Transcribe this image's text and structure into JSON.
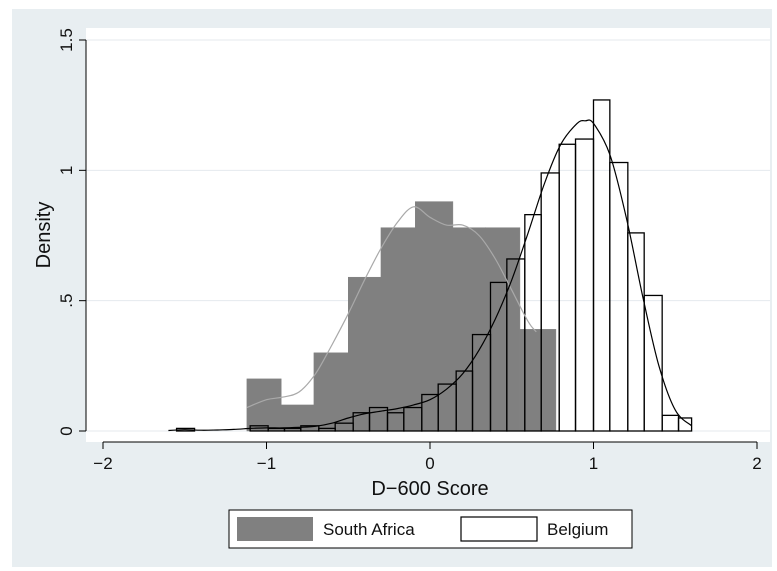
{
  "chart_data": {
    "type": "histogram",
    "xlabel": "D−600 Score",
    "ylabel": "Density",
    "xlim": [
      -2,
      2
    ],
    "ylim": [
      0,
      1.5
    ],
    "xticks": [
      {
        "value": -2,
        "label": "−2"
      },
      {
        "value": -1,
        "label": "−1"
      },
      {
        "value": 0,
        "label": "0"
      },
      {
        "value": 1,
        "label": "1"
      },
      {
        "value": 2,
        "label": "2"
      }
    ],
    "yticks": [
      {
        "value": 0,
        "label": "0"
      },
      {
        "value": 0.5,
        "label": ".5"
      },
      {
        "value": 1,
        "label": "1"
      },
      {
        "value": 1.5,
        "label": "1.5"
      }
    ],
    "grid": true,
    "legend": "bottom",
    "series": [
      {
        "name": "South Africa",
        "style": "filled",
        "fill": "#808080",
        "stroke": "#808080",
        "kde_color": "#a9a9a9",
        "bins": [
          {
            "x0": -1.12,
            "x1": -0.91,
            "y": 0.2
          },
          {
            "x0": -0.91,
            "x1": -0.71,
            "y": 0.1
          },
          {
            "x0": -0.71,
            "x1": -0.5,
            "y": 0.3
          },
          {
            "x0": -0.5,
            "x1": -0.3,
            "y": 0.59
          },
          {
            "x0": -0.3,
            "x1": -0.09,
            "y": 0.78
          },
          {
            "x0": -0.09,
            "x1": 0.14,
            "y": 0.88
          },
          {
            "x0": 0.14,
            "x1": 0.34,
            "y": 0.78
          },
          {
            "x0": 0.34,
            "x1": 0.55,
            "y": 0.78
          },
          {
            "x0": 0.55,
            "x1": 0.77,
            "y": 0.39
          }
        ],
        "kde": [
          [
            -1.12,
            0.09
          ],
          [
            -1.0,
            0.12
          ],
          [
            -0.9,
            0.13
          ],
          [
            -0.8,
            0.15
          ],
          [
            -0.7,
            0.22
          ],
          [
            -0.6,
            0.33
          ],
          [
            -0.5,
            0.45
          ],
          [
            -0.4,
            0.58
          ],
          [
            -0.3,
            0.7
          ],
          [
            -0.2,
            0.8
          ],
          [
            -0.1,
            0.86
          ],
          [
            0.0,
            0.82
          ],
          [
            0.1,
            0.79
          ],
          [
            0.2,
            0.79
          ],
          [
            0.3,
            0.75
          ],
          [
            0.4,
            0.66
          ],
          [
            0.5,
            0.54
          ],
          [
            0.6,
            0.42
          ],
          [
            0.65,
            0.38
          ]
        ]
      },
      {
        "name": "Belgium",
        "style": "outline",
        "fill": "#ffffff",
        "stroke": "#000000",
        "kde_color": "#000000",
        "bins": [
          {
            "x0": -1.55,
            "x1": -1.44,
            "y": 0.01
          },
          {
            "x0": -1.1,
            "x1": -0.99,
            "y": 0.02
          },
          {
            "x0": -0.99,
            "x1": -0.89,
            "y": 0.01
          },
          {
            "x0": -0.89,
            "x1": -0.79,
            "y": 0.01
          },
          {
            "x0": -0.79,
            "x1": -0.68,
            "y": 0.02
          },
          {
            "x0": -0.68,
            "x1": -0.58,
            "y": 0.01
          },
          {
            "x0": -0.58,
            "x1": -0.47,
            "y": 0.03
          },
          {
            "x0": -0.47,
            "x1": -0.37,
            "y": 0.07
          },
          {
            "x0": -0.37,
            "x1": -0.26,
            "y": 0.09
          },
          {
            "x0": -0.26,
            "x1": -0.16,
            "y": 0.07
          },
          {
            "x0": -0.16,
            "x1": -0.05,
            "y": 0.09
          },
          {
            "x0": -0.05,
            "x1": 0.05,
            "y": 0.14
          },
          {
            "x0": 0.05,
            "x1": 0.16,
            "y": 0.18
          },
          {
            "x0": 0.16,
            "x1": 0.26,
            "y": 0.23
          },
          {
            "x0": 0.26,
            "x1": 0.37,
            "y": 0.37
          },
          {
            "x0": 0.37,
            "x1": 0.47,
            "y": 0.57
          },
          {
            "x0": 0.47,
            "x1": 0.58,
            "y": 0.66
          },
          {
            "x0": 0.58,
            "x1": 0.68,
            "y": 0.83
          },
          {
            "x0": 0.68,
            "x1": 0.79,
            "y": 0.99
          },
          {
            "x0": 0.79,
            "x1": 0.89,
            "y": 1.1
          },
          {
            "x0": 0.89,
            "x1": 1.0,
            "y": 1.12
          },
          {
            "x0": 1.0,
            "x1": 1.1,
            "y": 1.27
          },
          {
            "x0": 1.1,
            "x1": 1.21,
            "y": 1.03
          },
          {
            "x0": 1.21,
            "x1": 1.31,
            "y": 0.76
          },
          {
            "x0": 1.31,
            "x1": 1.42,
            "y": 0.52
          },
          {
            "x0": 1.42,
            "x1": 1.52,
            "y": 0.06
          },
          {
            "x0": 1.52,
            "x1": 1.6,
            "y": 0.05
          }
        ],
        "kde": [
          [
            -1.6,
            0.002
          ],
          [
            -1.5,
            0.005
          ],
          [
            -1.4,
            0.003
          ],
          [
            -1.3,
            0.004
          ],
          [
            -1.2,
            0.006
          ],
          [
            -1.1,
            0.01
          ],
          [
            -1.0,
            0.012
          ],
          [
            -0.9,
            0.012
          ],
          [
            -0.8,
            0.014
          ],
          [
            -0.7,
            0.018
          ],
          [
            -0.6,
            0.03
          ],
          [
            -0.5,
            0.05
          ],
          [
            -0.4,
            0.066
          ],
          [
            -0.3,
            0.076
          ],
          [
            -0.2,
            0.086
          ],
          [
            -0.1,
            0.1
          ],
          [
            0.0,
            0.12
          ],
          [
            0.1,
            0.16
          ],
          [
            0.2,
            0.22
          ],
          [
            0.3,
            0.31
          ],
          [
            0.4,
            0.43
          ],
          [
            0.5,
            0.58
          ],
          [
            0.6,
            0.76
          ],
          [
            0.7,
            0.95
          ],
          [
            0.8,
            1.1
          ],
          [
            0.9,
            1.18
          ],
          [
            0.95,
            1.19
          ],
          [
            1.0,
            1.18
          ],
          [
            1.1,
            1.06
          ],
          [
            1.2,
            0.82
          ],
          [
            1.3,
            0.52
          ],
          [
            1.4,
            0.25
          ],
          [
            1.5,
            0.08
          ],
          [
            1.6,
            0.02
          ]
        ]
      }
    ]
  }
}
